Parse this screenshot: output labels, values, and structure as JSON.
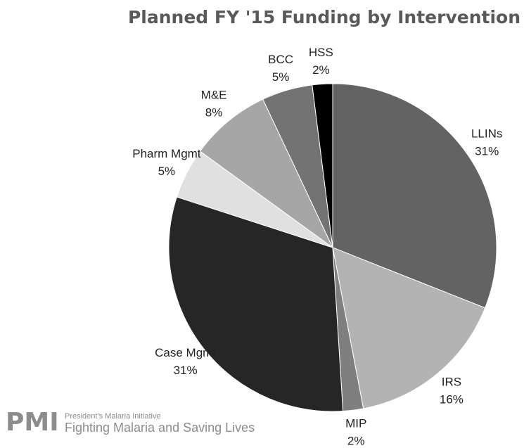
{
  "chart_data": {
    "type": "pie",
    "title": "Planned FY '15 Funding by Intervention",
    "categories": [
      "LLINs",
      "IRS",
      "MIP",
      "Case Mgmt",
      "Pharm Mgmt",
      "M&E",
      "BCC",
      "HSS"
    ],
    "values": [
      31,
      16,
      2,
      31,
      5,
      8,
      5,
      2
    ],
    "value_labels": [
      "31%",
      "16%",
      "2%",
      "31%",
      "5%",
      "8%",
      "5%",
      "2%"
    ],
    "colors": [
      "#636363",
      "#b3b3b3",
      "#7f7f7f",
      "#262626",
      "#e0e0e0",
      "#a6a6a6",
      "#737373",
      "#000000"
    ]
  },
  "logo": {
    "mark": "PMI",
    "line1": "President's Malaria Initiative",
    "line2": "Fighting Malaria and Saving Lives"
  }
}
